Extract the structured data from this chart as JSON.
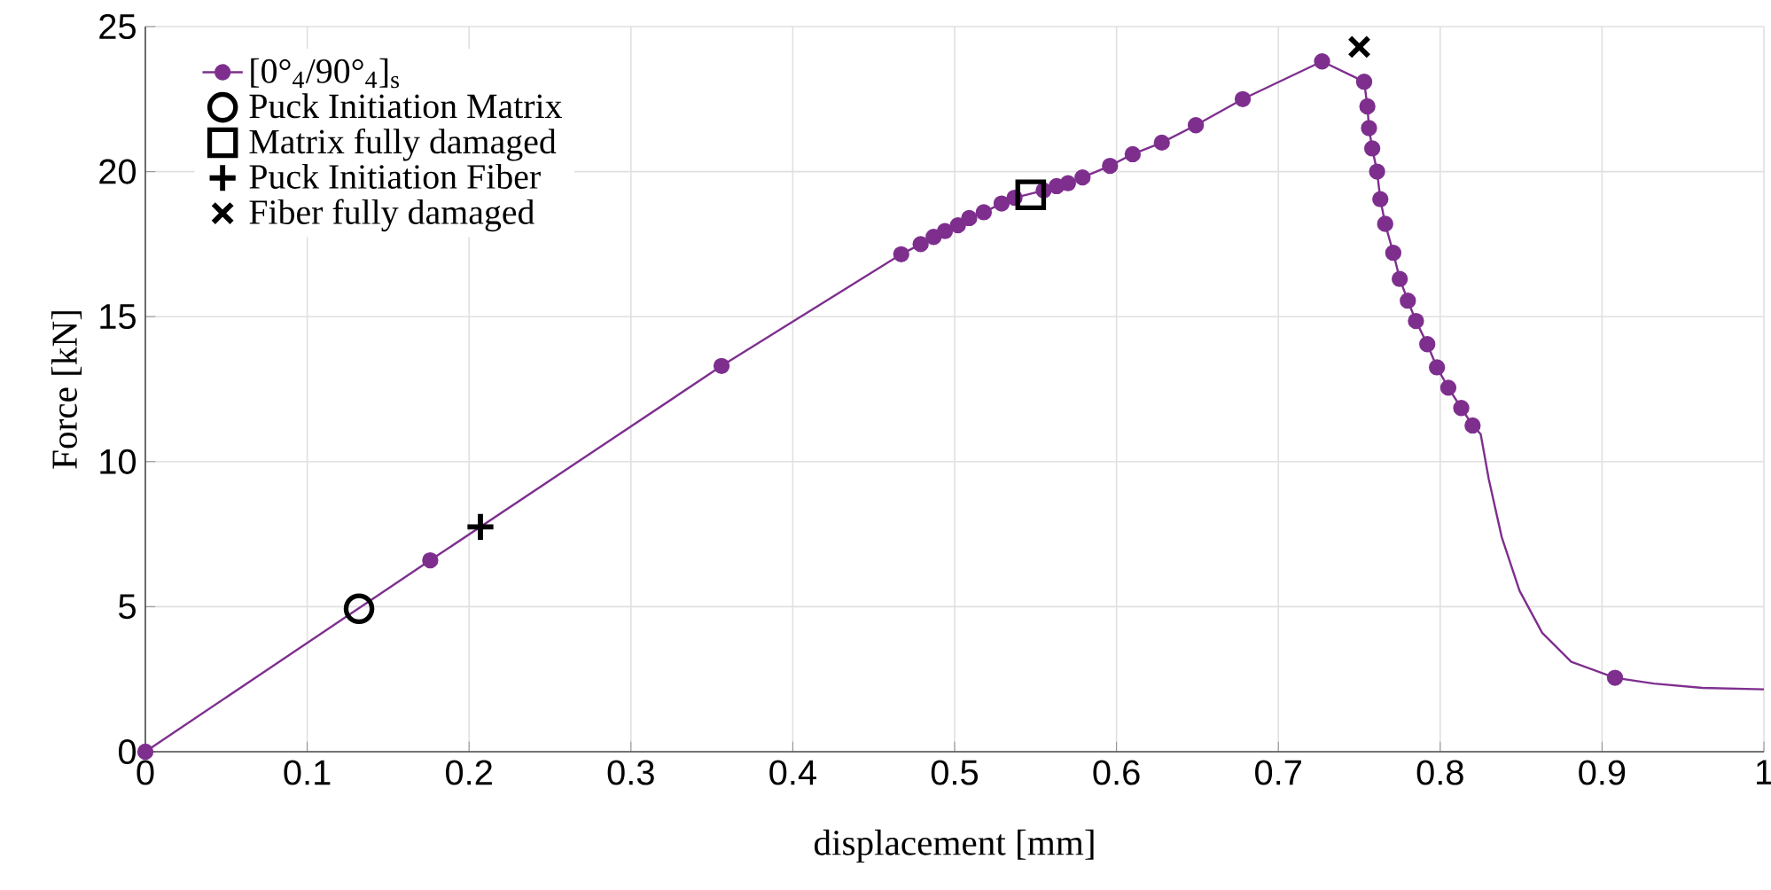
{
  "chart_data": {
    "type": "line",
    "xlabel": "displacement [mm]",
    "ylabel": "Force [kN]",
    "xlim": [
      0,
      1
    ],
    "ylim": [
      0,
      25
    ],
    "xticks": [
      0,
      0.1,
      0.2,
      0.3,
      0.4,
      0.5,
      0.6,
      0.7,
      0.8,
      0.9,
      1
    ],
    "yticks": [
      0,
      5,
      10,
      15,
      20,
      25
    ],
    "grid": true,
    "legend": "top left",
    "series": [
      {
        "name": "[0°$_{4}$/90°$_{4}$]$_{s}$",
        "marker": "circle",
        "color": "#7e2f8e",
        "x": [
          0,
          0.176,
          0.356,
          0.467,
          0.479,
          0.487,
          0.494,
          0.502,
          0.509,
          0.518,
          0.529,
          0.537,
          0.555,
          0.563,
          0.57,
          0.579,
          0.596,
          0.61,
          0.628,
          0.649,
          0.678,
          0.727,
          0.753,
          0.755,
          0.756,
          0.758,
          0.761,
          0.763,
          0.766,
          0.771,
          0.775,
          0.78,
          0.785,
          0.792,
          0.798,
          0.805,
          0.813,
          0.82,
          0.86,
          0.908
        ],
        "values": [
          0,
          6.6,
          13.3,
          17.15,
          17.5,
          17.75,
          17.95,
          18.15,
          18.4,
          18.6,
          18.9,
          19.1,
          19.35,
          19.5,
          19.6,
          19.8,
          20.2,
          20.6,
          21.0,
          21.6,
          22.5,
          23.8,
          23.1,
          22.25,
          21.5,
          20.8,
          20.0,
          19.05,
          18.2,
          17.2,
          16.3,
          15.55,
          14.85,
          14.05,
          13.25,
          12.55,
          11.85,
          11.25,
          null,
          2.55
        ]
      },
      {
        "marker": "none",
        "color": "#7e2f8e",
        "x": [
          0.82,
          0.825,
          0.83,
          0.838,
          0.849,
          0.863,
          0.881,
          0.908,
          0.932,
          0.962,
          1.0
        ],
        "values": [
          11.25,
          10.95,
          9.4,
          7.4,
          5.55,
          4.1,
          3.1,
          2.55,
          2.35,
          2.2,
          2.15
        ]
      },
      {
        "name": "Puck Initiation Matrix",
        "type": "scatter",
        "marker": "circle",
        "color": "#000000",
        "x": [
          0.132
        ],
        "values": [
          4.93
        ]
      },
      {
        "name": "Matrix fully damaged",
        "type": "scatter",
        "marker": "square",
        "color": "#000000",
        "x": [
          0.547
        ],
        "values": [
          19.2
        ]
      },
      {
        "name": "Puck Initiation Fiber",
        "type": "scatter",
        "marker": "plus",
        "color": "#000000",
        "x": [
          0.207
        ],
        "values": [
          7.75
        ]
      },
      {
        "name": "Fiber fully damaged",
        "type": "scatter",
        "marker": "cross",
        "color": "#000000",
        "x": [
          0.75
        ],
        "values": [
          24.3
        ]
      }
    ]
  }
}
